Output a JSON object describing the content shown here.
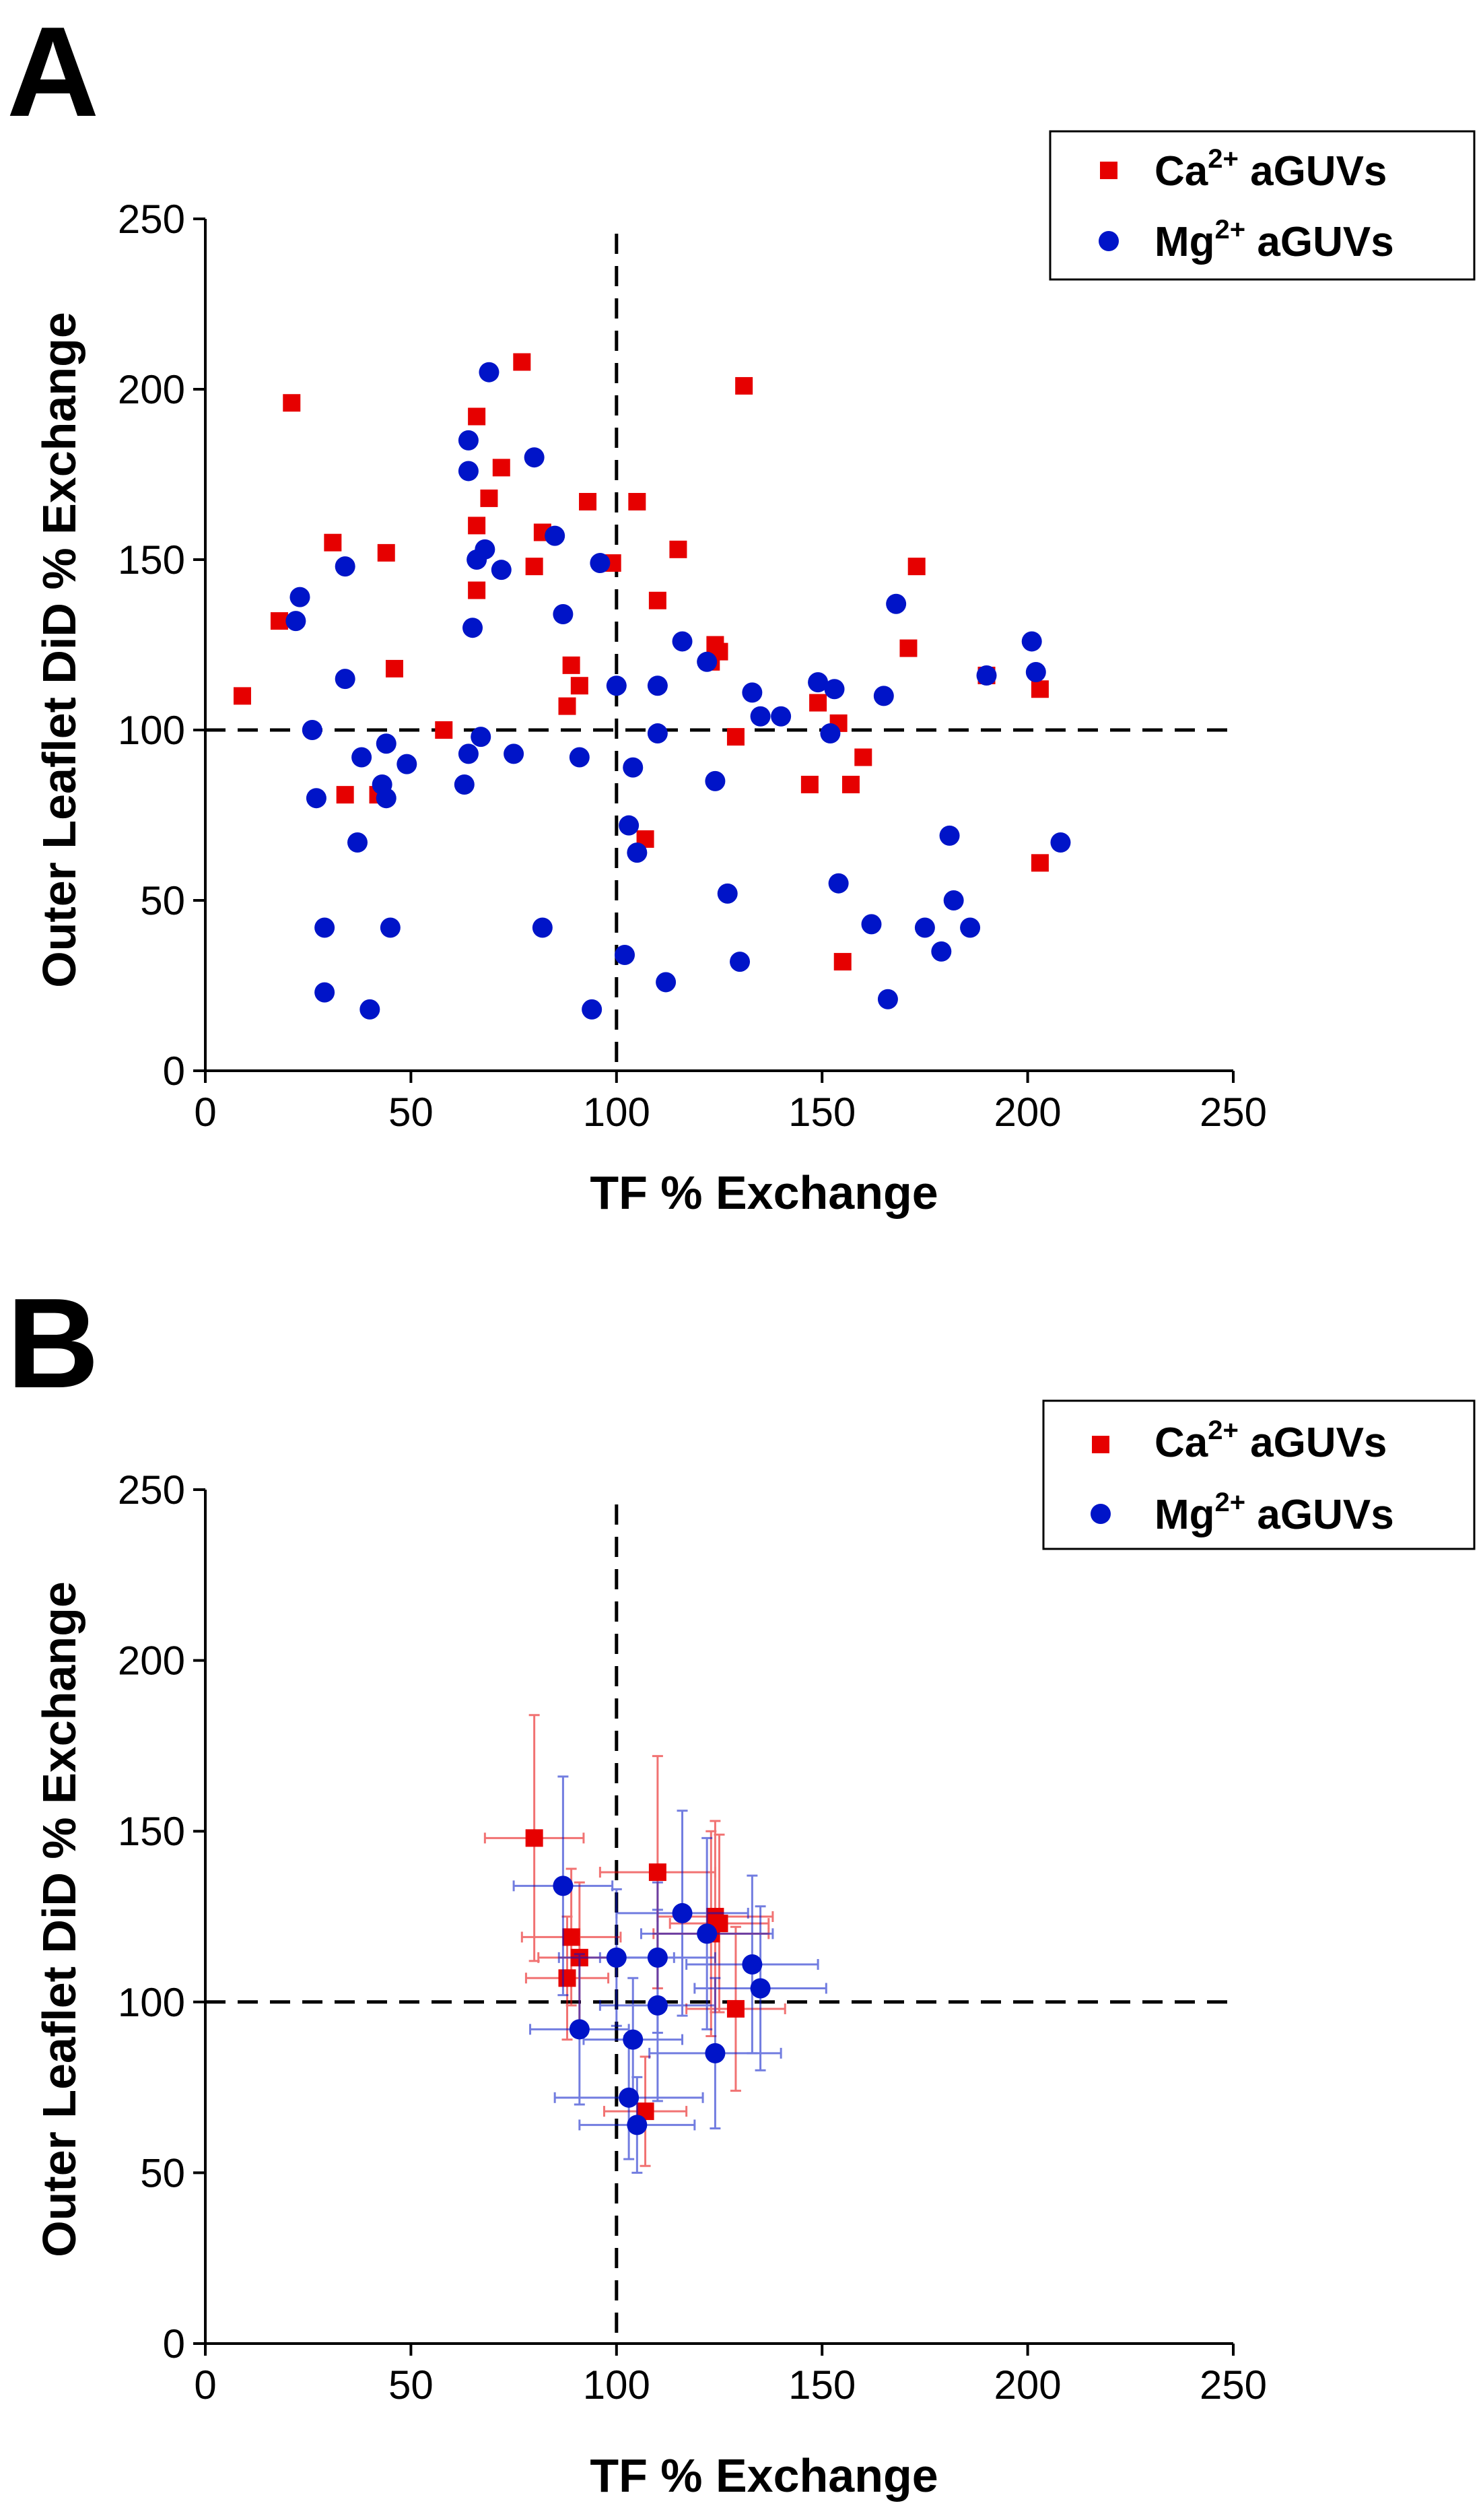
{
  "figure": {
    "background": "#ffffff",
    "series_colors": {
      "ca": "#e60000",
      "mg": "#0014c8"
    }
  },
  "chart_data": [
    {
      "panel": "A",
      "type": "scatter",
      "xlabel": "TF % Exchange",
      "ylabel": "Outer Leaflet DiD % Exchange",
      "xlim": [
        0,
        250
      ],
      "ylim": [
        0,
        250
      ],
      "xticks": [
        0,
        50,
        100,
        150,
        200,
        250
      ],
      "yticks": [
        0,
        50,
        100,
        150,
        200,
        250
      ],
      "reference_lines": {
        "x": 100,
        "y": 100,
        "style": "dashed"
      },
      "legend": {
        "position": "top-right",
        "entries": [
          {
            "series": "ca",
            "ion": "Ca",
            "charge": "2+",
            "suffix": " aGUVs"
          },
          {
            "series": "mg",
            "ion": "Mg",
            "charge": "2+",
            "suffix": " aGUVs"
          }
        ]
      },
      "series": [
        {
          "name": "Ca2+ aGUVs",
          "key": "ca",
          "marker": "square",
          "points": [
            [
              9,
              110
            ],
            [
              18,
              132
            ],
            [
              21,
              196
            ],
            [
              31,
              155
            ],
            [
              34,
              81
            ],
            [
              42,
              81
            ],
            [
              44,
              152
            ],
            [
              46,
              118
            ],
            [
              58,
              100
            ],
            [
              66,
              192
            ],
            [
              66,
              160
            ],
            [
              66,
              141
            ],
            [
              69,
              168
            ],
            [
              72,
              177
            ],
            [
              77,
              208
            ],
            [
              80,
              148
            ],
            [
              82,
              158
            ],
            [
              88,
              107
            ],
            [
              89,
              119
            ],
            [
              91,
              113
            ],
            [
              93,
              167
            ],
            [
              99,
              149
            ],
            [
              105,
              167
            ],
            [
              107,
              68
            ],
            [
              110,
              138
            ],
            [
              115,
              153
            ],
            [
              123,
              120
            ],
            [
              124,
              125
            ],
            [
              125,
              123
            ],
            [
              129,
              98
            ],
            [
              131,
              201
            ],
            [
              147,
              84
            ],
            [
              149,
              108
            ],
            [
              154,
              102
            ],
            [
              155,
              32
            ],
            [
              157,
              84
            ],
            [
              160,
              92
            ],
            [
              171,
              124
            ],
            [
              173,
              148
            ],
            [
              190,
              116
            ],
            [
              203,
              112
            ],
            [
              203,
              61
            ]
          ]
        },
        {
          "name": "Mg2+ aGUVs",
          "key": "mg",
          "marker": "circle",
          "points": [
            [
              22,
              132
            ],
            [
              23,
              139
            ],
            [
              26,
              100
            ],
            [
              27,
              80
            ],
            [
              29,
              42
            ],
            [
              29,
              23
            ],
            [
              34,
              148
            ],
            [
              34,
              115
            ],
            [
              37,
              67
            ],
            [
              38,
              92
            ],
            [
              40,
              18
            ],
            [
              43,
              84
            ],
            [
              44,
              96
            ],
            [
              44,
              80
            ],
            [
              45,
              42
            ],
            [
              49,
              90
            ],
            [
              63,
              84
            ],
            [
              64,
              93
            ],
            [
              64,
              176
            ],
            [
              64,
              185
            ],
            [
              65,
              130
            ],
            [
              66,
              150
            ],
            [
              67,
              98
            ],
            [
              68,
              153
            ],
            [
              69,
              205
            ],
            [
              72,
              147
            ],
            [
              75,
              93
            ],
            [
              80,
              180
            ],
            [
              82,
              42
            ],
            [
              85,
              157
            ],
            [
              87,
              134
            ],
            [
              91,
              92
            ],
            [
              94,
              18
            ],
            [
              96,
              149
            ],
            [
              100,
              113
            ],
            [
              102,
              34
            ],
            [
              103,
              72
            ],
            [
              104,
              89
            ],
            [
              105,
              64
            ],
            [
              110,
              113
            ],
            [
              110,
              99
            ],
            [
              112,
              26
            ],
            [
              116,
              126
            ],
            [
              122,
              120
            ],
            [
              124,
              85
            ],
            [
              127,
              52
            ],
            [
              130,
              32
            ],
            [
              133,
              111
            ],
            [
              135,
              104
            ],
            [
              140,
              104
            ],
            [
              149,
              114
            ],
            [
              152,
              99
            ],
            [
              153,
              112
            ],
            [
              154,
              55
            ],
            [
              162,
              43
            ],
            [
              165,
              110
            ],
            [
              166,
              21
            ],
            [
              168,
              137
            ],
            [
              175,
              42
            ],
            [
              179,
              35
            ],
            [
              181,
              69
            ],
            [
              182,
              50
            ],
            [
              186,
              42
            ],
            [
              190,
              116
            ],
            [
              201,
              126
            ],
            [
              202,
              117
            ],
            [
              208,
              67
            ]
          ]
        }
      ]
    },
    {
      "panel": "B",
      "type": "scatter",
      "xlabel": "TF % Exchange",
      "ylabel": "Outer Leaflet DiD % Exchange",
      "xlim": [
        0,
        250
      ],
      "ylim": [
        0,
        250
      ],
      "xticks": [
        0,
        50,
        100,
        150,
        200,
        250
      ],
      "yticks": [
        0,
        50,
        100,
        150,
        200,
        250
      ],
      "reference_lines": {
        "x": 100,
        "y": 100,
        "style": "dashed"
      },
      "legend": {
        "position": "top-right",
        "entries": [
          {
            "series": "ca",
            "ion": "Ca",
            "charge": "2+",
            "suffix": " aGUVs"
          },
          {
            "series": "mg",
            "ion": "Mg",
            "charge": "2+",
            "suffix": " aGUVs"
          }
        ]
      },
      "series": [
        {
          "name": "Ca2+ aGUVs",
          "key": "ca",
          "marker": "square",
          "error_bars": true,
          "points": [
            {
              "x": 80,
              "y": 148,
              "xerr": 12,
              "yerr": 36
            },
            {
              "x": 88,
              "y": 107,
              "xerr": 10,
              "yerr": 18
            },
            {
              "x": 89,
              "y": 119,
              "xerr": 12,
              "yerr": 20
            },
            {
              "x": 91,
              "y": 113,
              "xerr": 10,
              "yerr": 22
            },
            {
              "x": 107,
              "y": 68,
              "xerr": 10,
              "yerr": 16
            },
            {
              "x": 110,
              "y": 138,
              "xerr": 14,
              "yerr": 34
            },
            {
              "x": 123,
              "y": 120,
              "xerr": 14,
              "yerr": 30
            },
            {
              "x": 124,
              "y": 125,
              "xerr": 14,
              "yerr": 28
            },
            {
              "x": 125,
              "y": 123,
              "xerr": 12,
              "yerr": 26
            },
            {
              "x": 129,
              "y": 98,
              "xerr": 12,
              "yerr": 24
            }
          ]
        },
        {
          "name": "Mg2+ aGUVs",
          "key": "mg",
          "marker": "circle",
          "error_bars": true,
          "points": [
            {
              "x": 87,
              "y": 134,
              "xerr": 12,
              "yerr": 32
            },
            {
              "x": 91,
              "y": 92,
              "xerr": 12,
              "yerr": 22
            },
            {
              "x": 100,
              "y": 113,
              "xerr": 14,
              "yerr": 20
            },
            {
              "x": 103,
              "y": 72,
              "xerr": 18,
              "yerr": 18
            },
            {
              "x": 104,
              "y": 89,
              "xerr": 12,
              "yerr": 18
            },
            {
              "x": 105,
              "y": 64,
              "xerr": 14,
              "yerr": 14
            },
            {
              "x": 110,
              "y": 113,
              "xerr": 14,
              "yerr": 22
            },
            {
              "x": 110,
              "y": 99,
              "xerr": 14,
              "yerr": 28
            },
            {
              "x": 116,
              "y": 126,
              "xerr": 16,
              "yerr": 30
            },
            {
              "x": 122,
              "y": 120,
              "xerr": 16,
              "yerr": 28
            },
            {
              "x": 124,
              "y": 85,
              "xerr": 16,
              "yerr": 22
            },
            {
              "x": 133,
              "y": 111,
              "xerr": 16,
              "yerr": 26
            },
            {
              "x": 135,
              "y": 104,
              "xerr": 16,
              "yerr": 24
            }
          ]
        }
      ]
    }
  ]
}
